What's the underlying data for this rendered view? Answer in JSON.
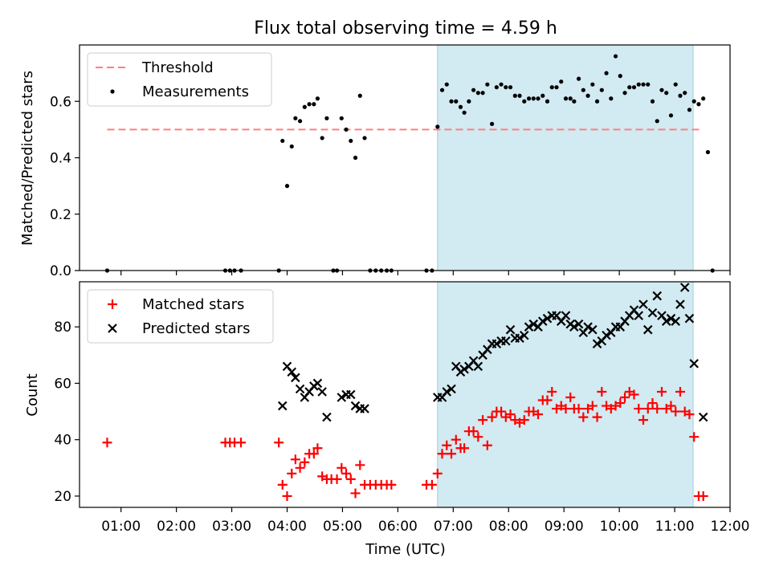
{
  "figure": {
    "title": "Flux total observing time = 4.59 h",
    "xlabel": "Time (UTC)",
    "xticks": [
      "01:00",
      "02:00",
      "03:00",
      "04:00",
      "05:00",
      "06:00",
      "07:00",
      "08:00",
      "09:00",
      "10:00",
      "11:00",
      "12:00"
    ]
  },
  "colors": {
    "threshold": "#ff7f7f",
    "measurements": "#000000",
    "shade": "#add8e6",
    "matched": "#ff0000",
    "predicted": "#000000"
  },
  "chart_data": [
    {
      "type": "scatter",
      "ylabel": "Matched/Predicted stars",
      "ylim": [
        0,
        0.8
      ],
      "yticks": [
        "0.0",
        "0.2",
        "0.4",
        "0.6"
      ],
      "xlim_hours": [
        0.25,
        12.0
      ],
      "shaded_interval": [
        "06:43",
        "11:20"
      ],
      "legend": {
        "position": "top-left",
        "entries": [
          "Threshold",
          "Measurements"
        ]
      },
      "threshold": {
        "name": "Threshold",
        "value": 0.5,
        "x_from": "00:45",
        "x_to": "11:28"
      },
      "series": [
        {
          "name": "Measurements",
          "points": [
            [
              "00:45",
              0.0
            ],
            [
              "02:53",
              0.0
            ],
            [
              "02:58",
              0.0
            ],
            [
              "03:03",
              0.0
            ],
            [
              "03:10",
              0.0
            ],
            [
              "03:51",
              0.0
            ],
            [
              "03:55",
              0.46
            ],
            [
              "04:00",
              0.3
            ],
            [
              "04:05",
              0.44
            ],
            [
              "04:09",
              0.54
            ],
            [
              "04:14",
              0.53
            ],
            [
              "04:19",
              0.58
            ],
            [
              "04:24",
              0.59
            ],
            [
              "04:29",
              0.59
            ],
            [
              "04:33",
              0.61
            ],
            [
              "04:38",
              0.47
            ],
            [
              "04:43",
              0.54
            ],
            [
              "04:50",
              0.0
            ],
            [
              "04:54",
              0.0
            ],
            [
              "04:59",
              0.54
            ],
            [
              "05:04",
              0.5
            ],
            [
              "05:09",
              0.46
            ],
            [
              "05:14",
              0.4
            ],
            [
              "05:19",
              0.62
            ],
            [
              "05:24",
              0.47
            ],
            [
              "05:30",
              0.0
            ],
            [
              "05:36",
              0.0
            ],
            [
              "05:42",
              0.0
            ],
            [
              "05:48",
              0.0
            ],
            [
              "05:53",
              0.0
            ],
            [
              "06:31",
              0.0
            ],
            [
              "06:37",
              0.0
            ],
            [
              "06:43",
              0.51
            ],
            [
              "06:48",
              0.64
            ],
            [
              "06:53",
              0.66
            ],
            [
              "06:58",
              0.6
            ],
            [
              "07:03",
              0.6
            ],
            [
              "07:08",
              0.58
            ],
            [
              "07:12",
              0.56
            ],
            [
              "07:17",
              0.6
            ],
            [
              "07:22",
              0.64
            ],
            [
              "07:27",
              0.63
            ],
            [
              "07:32",
              0.63
            ],
            [
              "07:37",
              0.66
            ],
            [
              "07:42",
              0.52
            ],
            [
              "07:47",
              0.65
            ],
            [
              "07:52",
              0.66
            ],
            [
              "07:57",
              0.65
            ],
            [
              "08:02",
              0.65
            ],
            [
              "08:07",
              0.62
            ],
            [
              "08:12",
              0.62
            ],
            [
              "08:17",
              0.6
            ],
            [
              "08:22",
              0.61
            ],
            [
              "08:27",
              0.61
            ],
            [
              "08:32",
              0.61
            ],
            [
              "08:37",
              0.62
            ],
            [
              "08:42",
              0.6
            ],
            [
              "08:47",
              0.65
            ],
            [
              "08:52",
              0.65
            ],
            [
              "08:57",
              0.67
            ],
            [
              "09:02",
              0.61
            ],
            [
              "09:07",
              0.61
            ],
            [
              "09:11",
              0.6
            ],
            [
              "09:16",
              0.68
            ],
            [
              "09:21",
              0.64
            ],
            [
              "09:26",
              0.62
            ],
            [
              "09:31",
              0.66
            ],
            [
              "09:36",
              0.6
            ],
            [
              "09:41",
              0.64
            ],
            [
              "09:46",
              0.7
            ],
            [
              "09:51",
              0.61
            ],
            [
              "09:56",
              0.76
            ],
            [
              "10:01",
              0.69
            ],
            [
              "10:06",
              0.63
            ],
            [
              "10:11",
              0.65
            ],
            [
              "10:16",
              0.65
            ],
            [
              "10:21",
              0.66
            ],
            [
              "10:26",
              0.66
            ],
            [
              "10:31",
              0.66
            ],
            [
              "10:36",
              0.6
            ],
            [
              "10:41",
              0.53
            ],
            [
              "10:46",
              0.64
            ],
            [
              "10:51",
              0.63
            ],
            [
              "10:56",
              0.55
            ],
            [
              "11:01",
              0.66
            ],
            [
              "11:06",
              0.62
            ],
            [
              "11:11",
              0.63
            ],
            [
              "11:16",
              0.57
            ],
            [
              "11:21",
              0.6
            ],
            [
              "11:26",
              0.59
            ],
            [
              "11:31",
              0.61
            ],
            [
              "11:36",
              0.42
            ],
            [
              "11:41",
              0.0
            ]
          ]
        }
      ]
    },
    {
      "type": "scatter",
      "ylabel": "Count",
      "ylim": [
        16,
        96
      ],
      "yticks": [
        "20",
        "40",
        "60",
        "80"
      ],
      "xlim_hours": [
        0.25,
        12.0
      ],
      "shaded_interval": [
        "06:43",
        "11:20"
      ],
      "legend": {
        "position": "top-left",
        "entries": [
          "Matched stars",
          "Predicted stars"
        ]
      },
      "series": [
        {
          "name": "Matched stars",
          "marker": "plus",
          "points": [
            [
              "00:45",
              39
            ],
            [
              "02:53",
              39
            ],
            [
              "02:58",
              39
            ],
            [
              "03:03",
              39
            ],
            [
              "03:10",
              39
            ],
            [
              "03:51",
              39
            ],
            [
              "03:55",
              24
            ],
            [
              "04:00",
              20
            ],
            [
              "04:05",
              28
            ],
            [
              "04:09",
              33
            ],
            [
              "04:14",
              30
            ],
            [
              "04:19",
              32
            ],
            [
              "04:24",
              35
            ],
            [
              "04:29",
              35
            ],
            [
              "04:33",
              37
            ],
            [
              "04:38",
              27
            ],
            [
              "04:43",
              26
            ],
            [
              "04:48",
              26
            ],
            [
              "04:54",
              26
            ],
            [
              "04:59",
              30
            ],
            [
              "05:04",
              28
            ],
            [
              "05:09",
              26
            ],
            [
              "05:14",
              21
            ],
            [
              "05:19",
              31
            ],
            [
              "05:24",
              24
            ],
            [
              "05:30",
              24
            ],
            [
              "05:36",
              24
            ],
            [
              "05:42",
              24
            ],
            [
              "05:48",
              24
            ],
            [
              "05:53",
              24
            ],
            [
              "06:31",
              24
            ],
            [
              "06:37",
              24
            ],
            [
              "06:43",
              28
            ],
            [
              "06:48",
              35
            ],
            [
              "06:53",
              38
            ],
            [
              "06:58",
              35
            ],
            [
              "07:03",
              40
            ],
            [
              "07:08",
              37
            ],
            [
              "07:12",
              37
            ],
            [
              "07:17",
              43
            ],
            [
              "07:22",
              43
            ],
            [
              "07:27",
              41
            ],
            [
              "07:32",
              47
            ],
            [
              "07:37",
              38
            ],
            [
              "07:42",
              48
            ],
            [
              "07:47",
              50
            ],
            [
              "07:52",
              50
            ],
            [
              "07:57",
              48
            ],
            [
              "08:02",
              49
            ],
            [
              "08:07",
              47
            ],
            [
              "08:12",
              46
            ],
            [
              "08:17",
              47
            ],
            [
              "08:22",
              50
            ],
            [
              "08:27",
              50
            ],
            [
              "08:32",
              49
            ],
            [
              "08:37",
              54
            ],
            [
              "08:42",
              54
            ],
            [
              "08:47",
              57
            ],
            [
              "08:52",
              51
            ],
            [
              "08:57",
              52
            ],
            [
              "09:02",
              51
            ],
            [
              "09:07",
              55
            ],
            [
              "09:11",
              51
            ],
            [
              "09:16",
              51
            ],
            [
              "09:21",
              48
            ],
            [
              "09:26",
              51
            ],
            [
              "09:31",
              52
            ],
            [
              "09:36",
              48
            ],
            [
              "09:41",
              57
            ],
            [
              "09:46",
              52
            ],
            [
              "09:51",
              51
            ],
            [
              "09:56",
              52
            ],
            [
              "10:01",
              53
            ],
            [
              "10:06",
              55
            ],
            [
              "10:11",
              57
            ],
            [
              "10:16",
              56
            ],
            [
              "10:21",
              51
            ],
            [
              "10:26",
              47
            ],
            [
              "10:31",
              51
            ],
            [
              "10:36",
              53
            ],
            [
              "10:41",
              51
            ],
            [
              "10:46",
              57
            ],
            [
              "10:51",
              51
            ],
            [
              "10:56",
              52
            ],
            [
              "11:01",
              50
            ],
            [
              "11:06",
              57
            ],
            [
              "11:11",
              50
            ],
            [
              "11:16",
              49
            ],
            [
              "11:21",
              41
            ],
            [
              "11:26",
              20
            ],
            [
              "11:31",
              20
            ]
          ]
        },
        {
          "name": "Predicted stars",
          "marker": "x",
          "points": [
            [
              "03:55",
              52
            ],
            [
              "04:00",
              66
            ],
            [
              "04:05",
              64
            ],
            [
              "04:09",
              62
            ],
            [
              "04:14",
              58
            ],
            [
              "04:19",
              55
            ],
            [
              "04:24",
              57
            ],
            [
              "04:29",
              59
            ],
            [
              "04:33",
              60
            ],
            [
              "04:38",
              57
            ],
            [
              "04:43",
              48
            ],
            [
              "04:59",
              55
            ],
            [
              "05:04",
              56
            ],
            [
              "05:09",
              56
            ],
            [
              "05:14",
              52
            ],
            [
              "05:19",
              51
            ],
            [
              "05:24",
              51
            ],
            [
              "06:43",
              55
            ],
            [
              "06:48",
              55
            ],
            [
              "06:53",
              57
            ],
            [
              "06:58",
              58
            ],
            [
              "07:03",
              66
            ],
            [
              "07:08",
              64
            ],
            [
              "07:12",
              65
            ],
            [
              "07:17",
              66
            ],
            [
              "07:22",
              68
            ],
            [
              "07:27",
              66
            ],
            [
              "07:32",
              70
            ],
            [
              "07:37",
              72
            ],
            [
              "07:42",
              74
            ],
            [
              "07:47",
              74
            ],
            [
              "07:52",
              75
            ],
            [
              "07:57",
              75
            ],
            [
              "08:02",
              79
            ],
            [
              "08:07",
              76
            ],
            [
              "08:12",
              76
            ],
            [
              "08:17",
              77
            ],
            [
              "08:22",
              80
            ],
            [
              "08:27",
              81
            ],
            [
              "08:32",
              80
            ],
            [
              "08:37",
              82
            ],
            [
              "08:42",
              83
            ],
            [
              "08:47",
              84
            ],
            [
              "08:52",
              84
            ],
            [
              "08:57",
              82
            ],
            [
              "09:02",
              84
            ],
            [
              "09:07",
              81
            ],
            [
              "09:11",
              80
            ],
            [
              "09:16",
              81
            ],
            [
              "09:21",
              78
            ],
            [
              "09:26",
              80
            ],
            [
              "09:31",
              79
            ],
            [
              "09:36",
              74
            ],
            [
              "09:41",
              75
            ],
            [
              "09:46",
              77
            ],
            [
              "09:51",
              78
            ],
            [
              "09:56",
              80
            ],
            [
              "10:01",
              80
            ],
            [
              "10:06",
              82
            ],
            [
              "10:11",
              84
            ],
            [
              "10:16",
              86
            ],
            [
              "10:21",
              84
            ],
            [
              "10:26",
              88
            ],
            [
              "10:31",
              79
            ],
            [
              "10:36",
              85
            ],
            [
              "10:41",
              91
            ],
            [
              "10:46",
              84
            ],
            [
              "10:51",
              82
            ],
            [
              "10:56",
              83
            ],
            [
              "11:01",
              82
            ],
            [
              "11:06",
              88
            ],
            [
              "11:11",
              94
            ],
            [
              "11:16",
              83
            ],
            [
              "11:21",
              67
            ],
            [
              "11:31",
              48
            ]
          ]
        }
      ]
    }
  ]
}
